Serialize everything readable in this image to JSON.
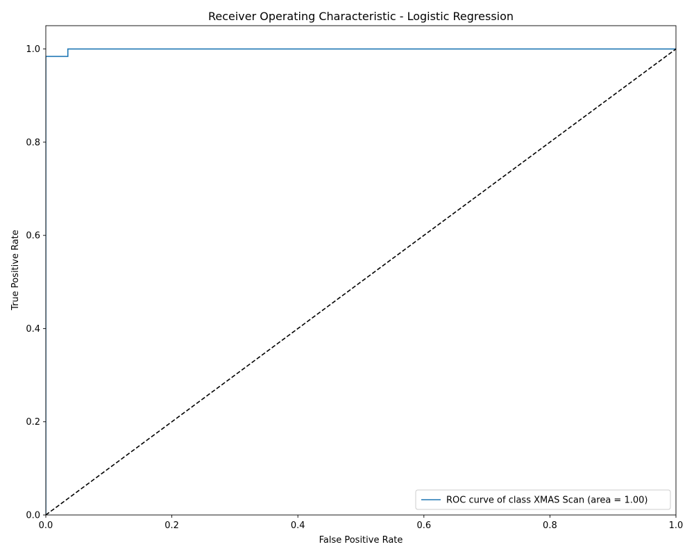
{
  "chart_data": {
    "type": "line",
    "title": "Receiver Operating Characteristic - Logistic Regression",
    "xlabel": "False Positive Rate",
    "ylabel": "True Positive Rate",
    "xlim": [
      0.0,
      1.0
    ],
    "ylim": [
      0.0,
      1.05
    ],
    "xticks": [
      "0.0",
      "0.2",
      "0.4",
      "0.6",
      "0.8",
      "1.0"
    ],
    "yticks": [
      "0.0",
      "0.2",
      "0.4",
      "0.6",
      "0.8",
      "1.0"
    ],
    "grid": false,
    "legend_position": "lower-right",
    "series": [
      {
        "name": "ROC curve of class XMAS Scan (area = 1.00)",
        "color": "#1f77b4",
        "style": "solid",
        "x": [
          0.0,
          0.0,
          0.035,
          0.035,
          1.0
        ],
        "y": [
          0.0,
          0.984,
          0.984,
          1.0,
          1.0
        ]
      },
      {
        "color": "#000000",
        "style": "dashed",
        "x": [
          0.0,
          1.0
        ],
        "y": [
          0.0,
          1.0
        ]
      }
    ]
  }
}
